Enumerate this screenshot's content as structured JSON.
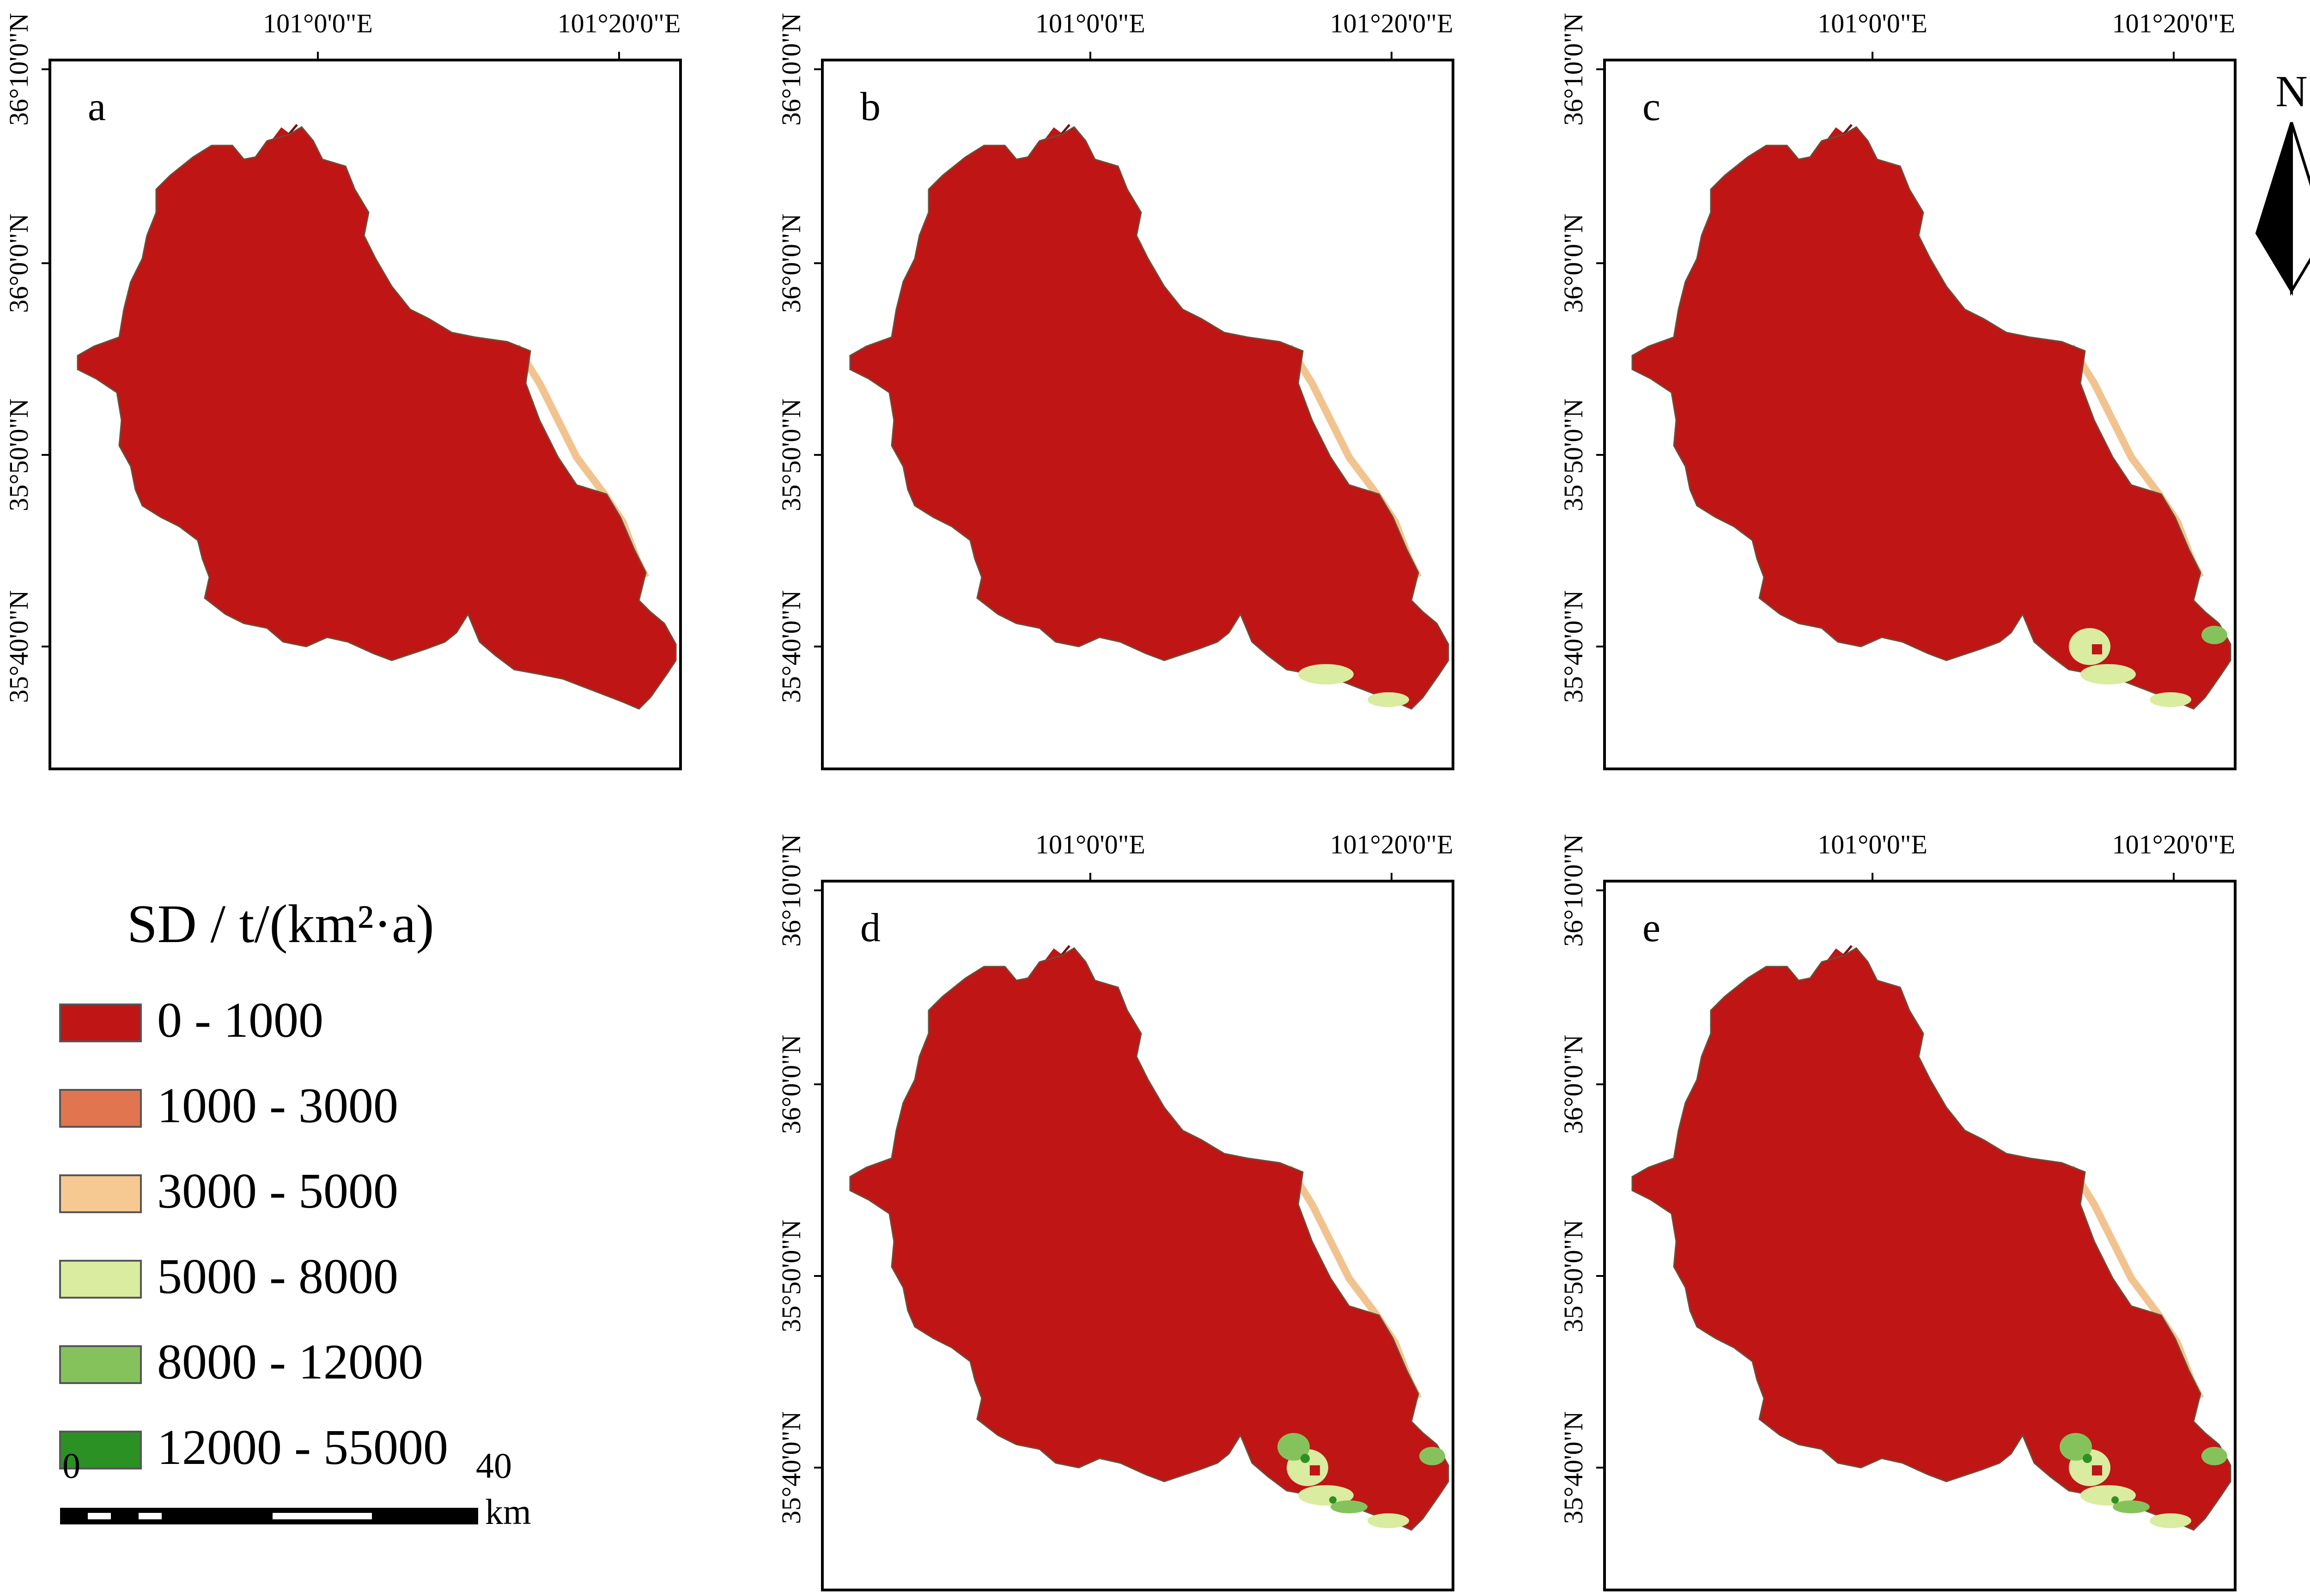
{
  "lon_labels": [
    "101°0'0\"E",
    "101°20'0\"E"
  ],
  "lat_labels": [
    "36°10'0\"N",
    "36°0'0\"N",
    "35°50'0\"N",
    "35°40'0\"N"
  ],
  "panels": [
    {
      "id": "a",
      "label": "a"
    },
    {
      "id": "b",
      "label": "b"
    },
    {
      "id": "c",
      "label": "c"
    },
    {
      "id": "d",
      "label": "d"
    },
    {
      "id": "e",
      "label": "e"
    }
  ],
  "north_arrow": {
    "label": "N"
  },
  "legend": {
    "title": "SD / t/(km²·a)",
    "items": [
      {
        "label": "0 - 1000",
        "color": "#c01515"
      },
      {
        "label": "1000 - 3000",
        "color": "#e07550"
      },
      {
        "label": "3000 - 5000",
        "color": "#f7c992"
      },
      {
        "label": "5000 - 8000",
        "color": "#d9ec9f"
      },
      {
        "label": "8000 - 12000",
        "color": "#86c25c"
      },
      {
        "label": "12000 - 55000",
        "color": "#2c9124"
      }
    ]
  },
  "scale_bar": {
    "start": "0",
    "end": "40",
    "unit": "km"
  },
  "green_levels": [
    0,
    1,
    2,
    3,
    3
  ]
}
